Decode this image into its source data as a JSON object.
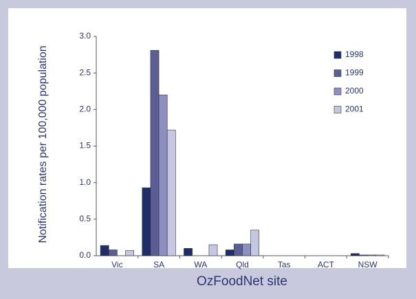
{
  "chart_data": {
    "type": "bar",
    "ylabel": "Notification rates per 100,000 population",
    "xlabel": "OzFoodNet site",
    "categories": [
      "Vic",
      "SA",
      "WA",
      "Qld",
      "Tas",
      "ACT",
      "NSW"
    ],
    "series": [
      {
        "name": "1998",
        "color": "#1f2d6b",
        "values": [
          0.14,
          0.93,
          0.1,
          0.08,
          0,
          0,
          0.03
        ]
      },
      {
        "name": "1999",
        "color": "#5a5e95",
        "values": [
          0.08,
          2.81,
          0,
          0.16,
          0,
          0,
          0.01
        ]
      },
      {
        "name": "2000",
        "color": "#8c8fbf",
        "values": [
          0,
          2.2,
          0,
          0.16,
          0,
          0,
          0.01
        ]
      },
      {
        "name": "2001",
        "color": "#c5c6e0",
        "values": [
          0.07,
          1.72,
          0.15,
          0.35,
          0,
          0,
          0.01
        ]
      }
    ],
    "ylim": [
      0,
      3
    ],
    "yticks": [
      {
        "value": 0,
        "label": "0.0"
      },
      {
        "value": 0.5,
        "label": "0.5"
      },
      {
        "value": 1,
        "label": "1.0"
      },
      {
        "value": 1.5,
        "label": "1.5"
      },
      {
        "value": 2,
        "label": "2.0"
      },
      {
        "value": 2.5,
        "label": "2.5"
      },
      {
        "value": 3,
        "label": "3.0"
      }
    ],
    "legend": "upper right"
  }
}
